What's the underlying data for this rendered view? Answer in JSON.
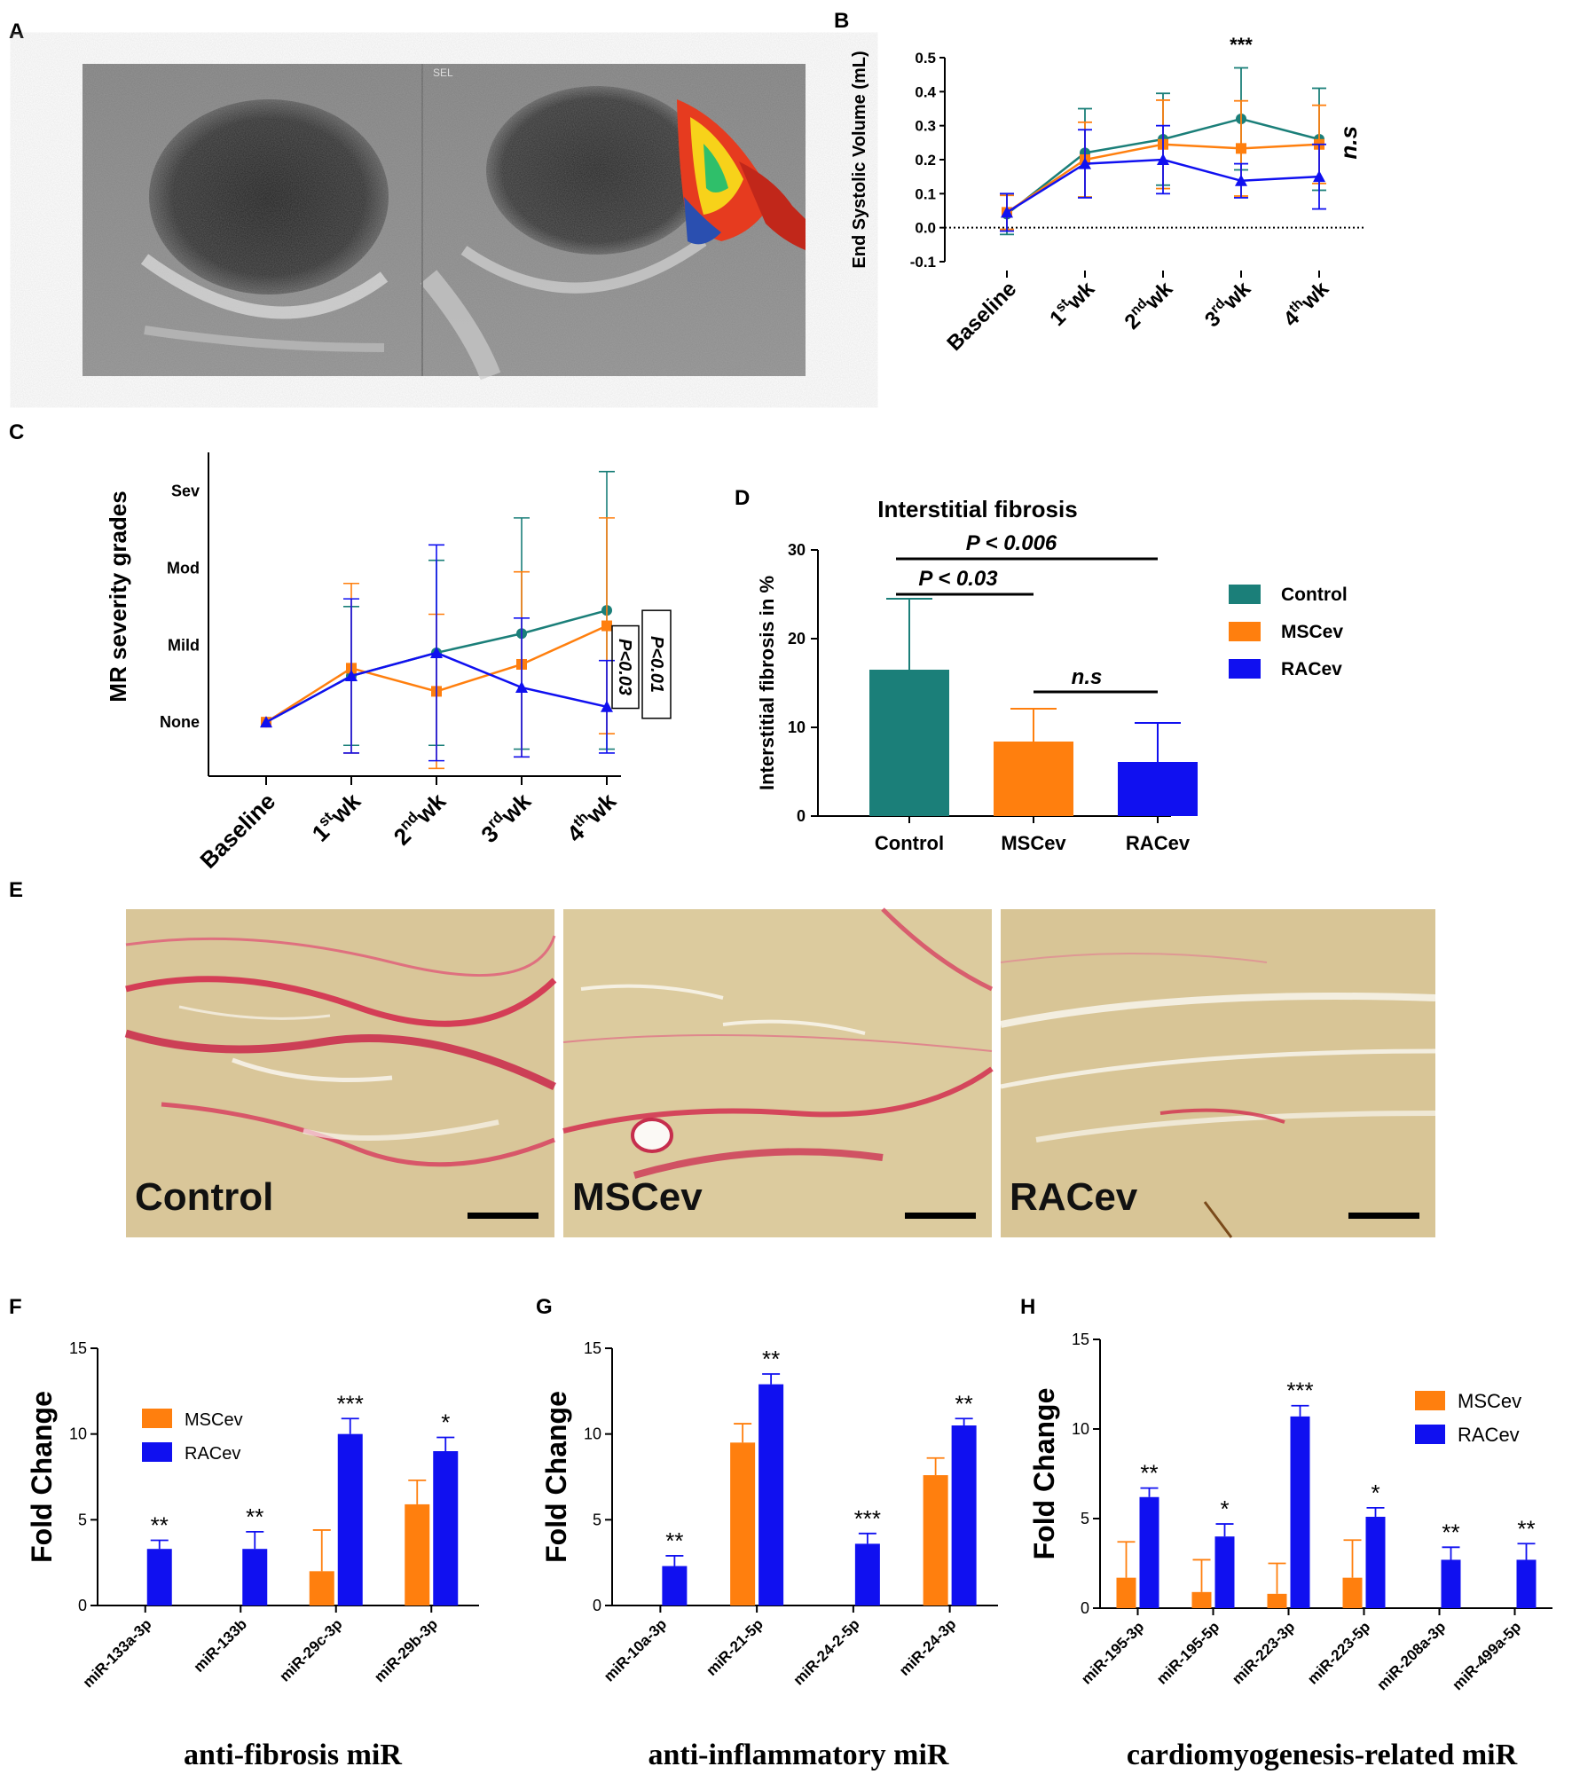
{
  "panels": {
    "A": "A",
    "B": "B",
    "C": "C",
    "D": "D",
    "E": "E",
    "F": "F",
    "G": "G",
    "H": "H"
  },
  "colors": {
    "control": "#1b7f79",
    "mscev": "#ff7f0e",
    "racev": "#1010f0"
  },
  "legend": {
    "control": "Control",
    "mscev": "MSCev",
    "racev": "RACev"
  },
  "panel_a": {
    "watermark": "SEL"
  },
  "panel_e": {
    "labels": [
      "Control",
      "MSCev",
      "RACev"
    ]
  },
  "captions": {
    "f": "anti-fibrosis miR",
    "g": "anti-inflammatory miR",
    "h": "cardiomyogenesis-related miR"
  },
  "chart_data": [
    {
      "id": "B",
      "type": "line",
      "ylabel": "End Systolic Volume (mL)",
      "categories": [
        "Baseline",
        "1st wk",
        "2nd wk",
        "3rd wk",
        "4th wk"
      ],
      "ylim": [
        -0.1,
        0.5
      ],
      "yticks": [
        "-0.1",
        "0.0",
        "0.1",
        "0.2",
        "0.3",
        "0.4",
        "0.5"
      ],
      "reference_line": 0,
      "annotations": [
        "***",
        "n.s"
      ],
      "series": [
        {
          "name": "Control",
          "values": [
            0.04,
            0.22,
            0.26,
            0.32,
            0.26
          ],
          "err": [
            0.06,
            0.13,
            0.135,
            0.15,
            0.15
          ]
        },
        {
          "name": "MSCev",
          "values": [
            0.045,
            0.2,
            0.245,
            0.233,
            0.245
          ],
          "err": [
            0.05,
            0.11,
            0.13,
            0.14,
            0.115
          ]
        },
        {
          "name": "RACev",
          "values": [
            0.045,
            0.188,
            0.2,
            0.138,
            0.15
          ],
          "err": [
            0.055,
            0.1,
            0.1,
            0.05,
            0.095
          ]
        }
      ]
    },
    {
      "id": "C",
      "type": "line",
      "ylabel": "MR severity grades",
      "categories": [
        "Baseline",
        "1st wk",
        "2nd wk",
        "3rd wk",
        "4th wk"
      ],
      "ylim": [
        -0.7,
        3.5
      ],
      "yticks": [
        "None",
        "Mod",
        "Mild",
        "Sev"
      ],
      "annotations": [
        "P<0.03",
        "P<0.01"
      ],
      "series": [
        {
          "name": "Control",
          "values": [
            0,
            0.6,
            0.9,
            1.15,
            1.45
          ],
          "err": [
            0,
            0.9,
            1.2,
            1.5,
            1.8
          ]
        },
        {
          "name": "MSCev",
          "values": [
            0,
            0.7,
            0.4,
            0.75,
            1.25
          ],
          "err": [
            0,
            1.1,
            1.0,
            1.2,
            1.4
          ]
        },
        {
          "name": "RACev",
          "values": [
            0,
            0.6,
            0.9,
            0.45,
            0.2
          ],
          "err": [
            0,
            1.0,
            1.4,
            0.9,
            0.6
          ]
        }
      ]
    },
    {
      "id": "D",
      "type": "bar",
      "title": "Interstitial fibrosis",
      "ylabel": "Interstitial fibrosis in %",
      "categories": [
        "Control",
        "MSCev",
        "RACev"
      ],
      "values": [
        16.5,
        8.4,
        6.1
      ],
      "err": [
        8.0,
        3.7,
        4.4
      ],
      "ylim": [
        0,
        30
      ],
      "yticks": [
        "0",
        "10",
        "20",
        "30"
      ],
      "annotations": [
        "P < 0.006",
        "P < 0.03",
        "n.s"
      ]
    },
    {
      "id": "F",
      "type": "bar",
      "ylabel": "Fold Change",
      "categories": [
        "miR-133a-3p",
        "miR-133b",
        "miR-29c-3p",
        "miR-29b-3p"
      ],
      "ylim": [
        0,
        15
      ],
      "yticks": [
        "0",
        "5",
        "10",
        "15"
      ],
      "stars": [
        "**",
        "**",
        "***",
        "*"
      ],
      "series": [
        {
          "name": "MSCev",
          "values": [
            0,
            0,
            2.0,
            5.9
          ],
          "err": [
            0,
            0,
            2.4,
            1.4
          ]
        },
        {
          "name": "RACev",
          "values": [
            3.3,
            3.3,
            10.0,
            9.0
          ],
          "err": [
            0.5,
            1.0,
            0.9,
            0.8
          ]
        }
      ]
    },
    {
      "id": "G",
      "type": "bar",
      "ylabel": "Fold Change",
      "categories": [
        "miR-10a-3p",
        "miR-21-5p",
        "miR-24-2-5p",
        "miR-24-3p"
      ],
      "ylim": [
        0,
        15
      ],
      "yticks": [
        "0",
        "5",
        "10",
        "15"
      ],
      "stars": [
        "**",
        "**",
        "***",
        "**"
      ],
      "series": [
        {
          "name": "MSCev",
          "values": [
            0,
            9.5,
            0,
            7.6
          ],
          "err": [
            0,
            1.1,
            0,
            1.0
          ]
        },
        {
          "name": "RACev",
          "values": [
            2.3,
            12.9,
            3.6,
            10.5
          ],
          "err": [
            0.6,
            0.6,
            0.6,
            0.4
          ]
        }
      ]
    },
    {
      "id": "H",
      "type": "bar",
      "ylabel": "Fold Change",
      "categories": [
        "miR-195-3p",
        "miR-195-5p",
        "miR-223-3p",
        "miR-223-5p",
        "miR-208a-3p",
        "miR-499a-5p"
      ],
      "ylim": [
        0,
        15
      ],
      "yticks": [
        "0",
        "5",
        "10",
        "15"
      ],
      "stars": [
        "**",
        "*",
        "***",
        "*",
        "**",
        "**"
      ],
      "series": [
        {
          "name": "MSCev",
          "values": [
            1.7,
            0.9,
            0.8,
            1.7,
            0,
            0
          ],
          "err": [
            2.0,
            1.8,
            1.7,
            2.1,
            0,
            0
          ]
        },
        {
          "name": "RACev",
          "values": [
            6.2,
            4.0,
            10.7,
            5.1,
            2.7,
            2.7
          ],
          "err": [
            0.5,
            0.7,
            0.6,
            0.5,
            0.7,
            0.9
          ]
        }
      ]
    }
  ]
}
